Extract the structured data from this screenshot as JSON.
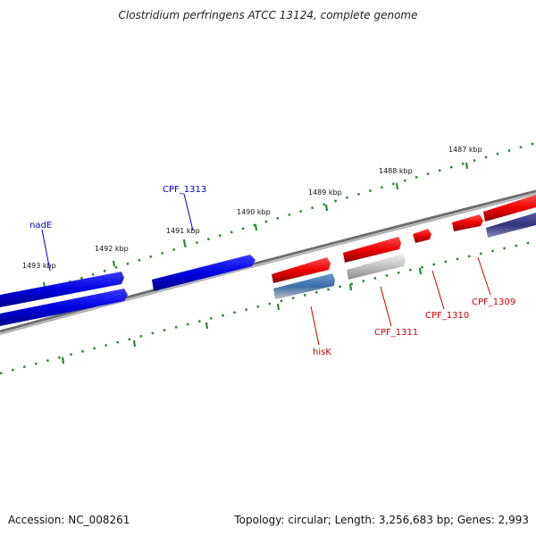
{
  "title": "Clostridium perfringens ATCC 13124, complete genome",
  "footer": {
    "accession": "Accession: NC_008261",
    "summary": "Topology: circular; Length: 3,256,683 bp; Genes: 2,993"
  },
  "ticks": [
    {
      "label": "1493 kbp"
    },
    {
      "label": "1492 kbp"
    },
    {
      "label": "1491 kbp"
    },
    {
      "label": "1490 kbp"
    },
    {
      "label": "1489 kbp"
    },
    {
      "label": "1488 kbp"
    },
    {
      "label": "1487 kbp"
    }
  ],
  "genes": [
    {
      "name": "nadE",
      "color": "#0000cc"
    },
    {
      "name": "CPF_1313",
      "color": "#0000cc"
    },
    {
      "name": "hisK",
      "color": "#cc0000"
    },
    {
      "name": "CPF_1311",
      "color": "#cc0000"
    },
    {
      "name": "CPF_1310",
      "color": "#cc0000"
    },
    {
      "name": "CPF_1309",
      "color": "#cc0000"
    }
  ],
  "colors": {
    "forward_gene": "#e00000",
    "reverse_gene": "#0000dd",
    "backbone": "#808080",
    "tick": "#2a8a2a"
  }
}
